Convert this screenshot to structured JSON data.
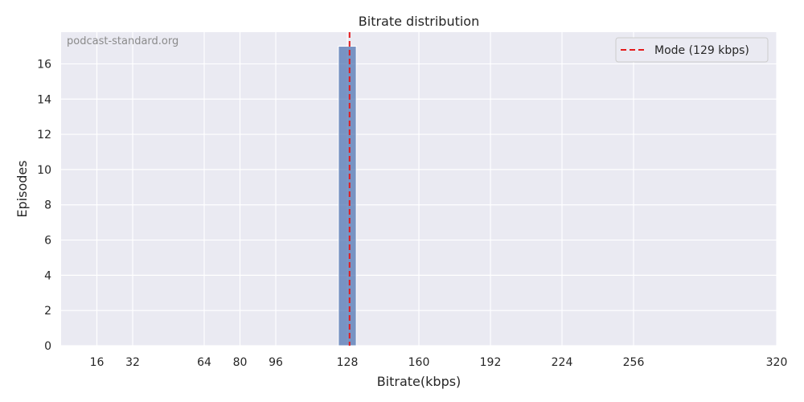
{
  "chart_data": {
    "type": "bar",
    "title": "Bitrate distribution",
    "xlabel": "Bitrate(kbps)",
    "ylabel": "Episodes",
    "watermark": "podcast-standard.org",
    "xlim": [
      0,
      320
    ],
    "ylim": [
      0,
      17.8
    ],
    "xticks": [
      16,
      32,
      64,
      80,
      96,
      128,
      160,
      192,
      224,
      256,
      320
    ],
    "yticks": [
      0,
      2,
      4,
      6,
      8,
      10,
      12,
      14,
      16
    ],
    "bins": [
      {
        "start": 124,
        "end": 132,
        "count": 17
      }
    ],
    "mode": {
      "value": 129,
      "label": "Mode (129 kbps)"
    },
    "grid": true,
    "legend_position": "top-right",
    "colors": {
      "background": "#eaeaf2",
      "grid": "#ffffff",
      "bar": "#4c72b0",
      "mode_line": "#e41a1c"
    }
  }
}
